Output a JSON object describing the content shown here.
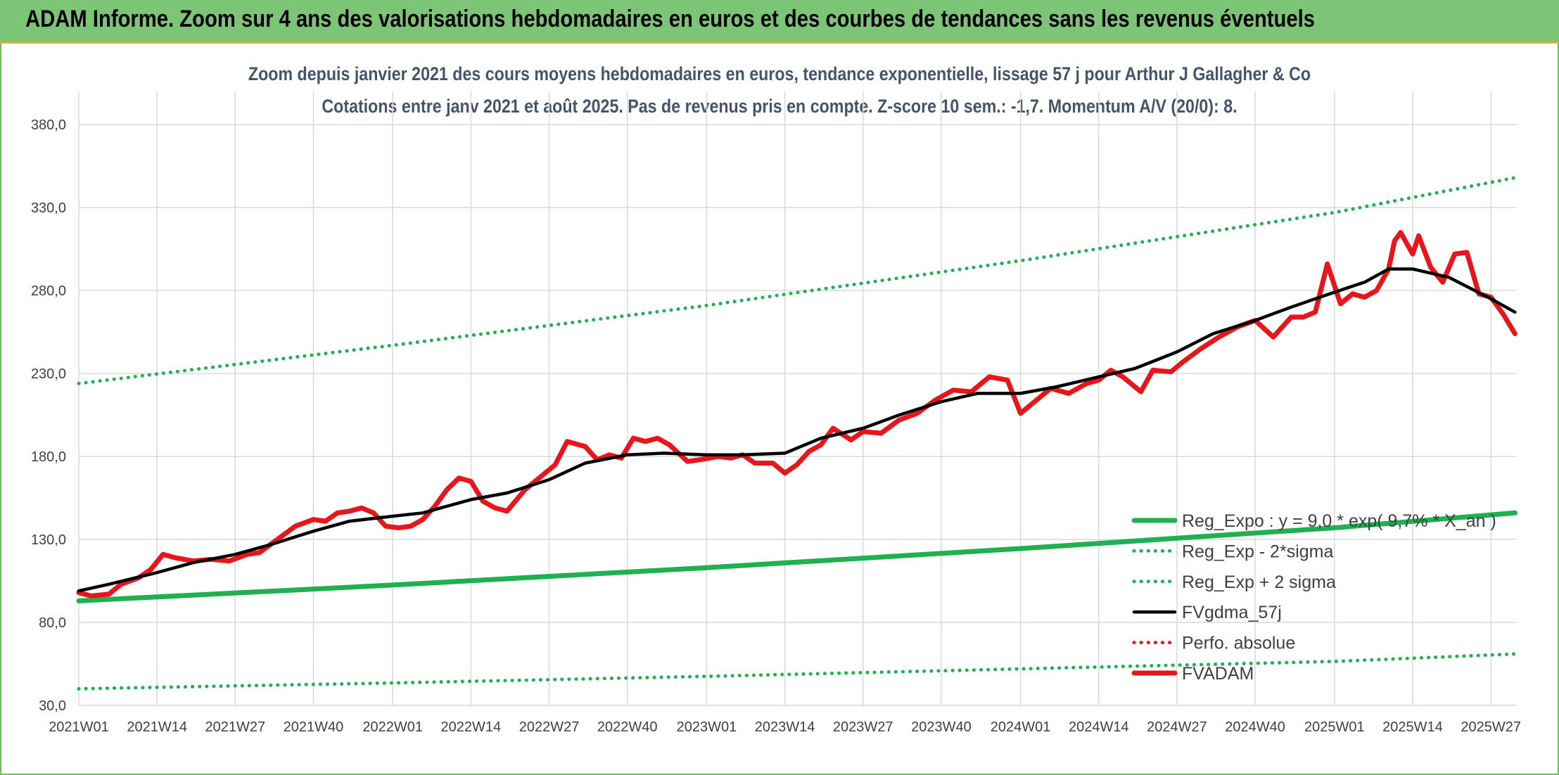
{
  "banner": {
    "title": "ADAM Informe. Zoom sur 4 ans des valorisations hebdomadaires en euros et des courbes de tendances sans les revenus éventuels"
  },
  "chart_data": {
    "type": "line",
    "title_line1": "Zoom depuis janvier 2021 des cours moyens hebdomadaires en euros, tendance exponentielle, lissage 57 j pour Arthur J Gallagher & Co",
    "title_line2": "Cotations entre janv 2021 et août 2025. Pas de revenus pris en compte. Z-score 10 sem.: -1,7. Momentum A/V (20/0): 8.",
    "ylim": [
      30,
      400
    ],
    "y_ticks": [
      "30,0",
      "80,0",
      "130,0",
      "180,0",
      "230,0",
      "280,0",
      "330,0",
      "380,0"
    ],
    "x_ticks": [
      "2021W01",
      "2021W14",
      "2021W27",
      "2021W40",
      "2022W01",
      "2022W14",
      "2022W27",
      "2022W40",
      "2023W01",
      "2023W14",
      "2023W27",
      "2023W40",
      "2024W01",
      "2024W14",
      "2024W27",
      "2024W40",
      "2025W01",
      "2025W14",
      "2025W27"
    ],
    "grid": true,
    "legend_position": "bottom-right",
    "legend": [
      "Reg_Expo : y = 9,0 * exp( 9,7% * X_an )",
      "Reg_Exp - 2*sigma",
      "Reg_Exp + 2 sigma",
      "FVgdma_57j",
      "Perfo. absolue",
      "FVADAM"
    ],
    "series": [
      {
        "name": "Reg_Expo : y = 9,0 * exp( 9,7% * X_an )",
        "style": "solid-thick",
        "color": "#1fb050",
        "x": [
          "2021W01",
          "2022W01",
          "2023W01",
          "2024W01",
          "2025W01",
          "2025W31"
        ],
        "y": [
          93,
          102.5,
          113,
          124.5,
          137,
          146
        ]
      },
      {
        "name": "Reg_Exp - 2*sigma",
        "style": "dotted",
        "color": "#1fb050",
        "x": [
          "2021W01",
          "2022W01",
          "2023W01",
          "2024W01",
          "2025W01",
          "2025W31"
        ],
        "y": [
          40,
          43.5,
          47.5,
          52,
          56.5,
          61
        ]
      },
      {
        "name": "Reg_Exp + 2 sigma",
        "style": "dotted",
        "color": "#1fb050",
        "x": [
          "2021W01",
          "2022W01",
          "2023W01",
          "2024W01",
          "2025W01",
          "2025W31"
        ],
        "y": [
          224,
          247,
          271,
          298,
          327,
          348
        ]
      },
      {
        "name": "FVgdma_57j",
        "style": "solid",
        "color": "#000000",
        "x": [
          "2021W01",
          "2021W06",
          "2021W14",
          "2021W20",
          "2021W27",
          "2021W33",
          "2021W40",
          "2021W46",
          "2022W01",
          "2022W06",
          "2022W14",
          "2022W20",
          "2022W27",
          "2022W33",
          "2022W40",
          "2022W46",
          "2023W01",
          "2023W07",
          "2023W14",
          "2023W20",
          "2023W27",
          "2023W33",
          "2023W40",
          "2023W46",
          "2024W01",
          "2024W07",
          "2024W14",
          "2024W20",
          "2024W27",
          "2024W33",
          "2024W40",
          "2024W46",
          "2025W01",
          "2025W06",
          "2025W10",
          "2025W14",
          "2025W20",
          "2025W27",
          "2025W31"
        ],
        "y": [
          99,
          103,
          110,
          116,
          121,
          127,
          135,
          141,
          144,
          146,
          154,
          158,
          166,
          176,
          181,
          182,
          181,
          181,
          182,
          191,
          197,
          205,
          213,
          218,
          218,
          222,
          228,
          233,
          243,
          254,
          262,
          270,
          279,
          285,
          293,
          293,
          288,
          275,
          267
        ]
      },
      {
        "name": "Perfo. absolue",
        "style": "dotted",
        "color": "#e8151b",
        "x": [],
        "y": []
      },
      {
        "name": "FVADAM",
        "style": "solid-thick",
        "color": "#e8151b",
        "x": [
          "2021W01",
          "2021W03",
          "2021W06",
          "2021W08",
          "2021W11",
          "2021W13",
          "2021W15",
          "2021W17",
          "2021W20",
          "2021W23",
          "2021W26",
          "2021W29",
          "2021W31",
          "2021W34",
          "2021W37",
          "2021W40",
          "2021W42",
          "2021W44",
          "2021W46",
          "2021W48",
          "2021W50",
          "2021W52",
          "2022W02",
          "2022W04",
          "2022W06",
          "2022W08",
          "2022W10",
          "2022W12",
          "2022W14",
          "2022W16",
          "2022W18",
          "2022W20",
          "2022W23",
          "2022W25",
          "2022W28",
          "2022W30",
          "2022W33",
          "2022W35",
          "2022W37",
          "2022W39",
          "2022W41",
          "2022W43",
          "2022W45",
          "2022W47",
          "2022W50",
          "2022W52",
          "2023W03",
          "2023W05",
          "2023W07",
          "2023W09",
          "2023W12",
          "2023W14",
          "2023W16",
          "2023W18",
          "2023W20",
          "2023W22",
          "2023W25",
          "2023W27",
          "2023W30",
          "2023W33",
          "2023W36",
          "2023W39",
          "2023W42",
          "2023W45",
          "2023W48",
          "2023W51",
          "2024W01",
          "2024W03",
          "2024W06",
          "2024W09",
          "2024W12",
          "2024W14",
          "2024W16",
          "2024W18",
          "2024W21",
          "2024W23",
          "2024W26",
          "2024W28",
          "2024W31",
          "2024W34",
          "2024W37",
          "2024W40",
          "2024W43",
          "2024W46",
          "2024W48",
          "2024W50",
          "2024W52",
          "2025W02",
          "2025W04",
          "2025W06",
          "2025W08",
          "2025W10",
          "2025W11",
          "2025W12",
          "2025W14",
          "2025W15",
          "2025W17",
          "2025W19",
          "2025W21",
          "2025W23",
          "2025W25",
          "2025W27",
          "2025W29",
          "2025W31"
        ],
        "y": [
          98,
          96,
          97,
          103,
          107,
          112,
          121,
          119,
          117,
          118,
          117,
          121,
          122,
          130,
          138,
          142,
          141,
          146,
          147,
          149,
          146,
          138,
          137,
          138,
          142,
          150,
          160,
          167,
          165,
          153,
          149,
          147,
          160,
          166,
          175,
          189,
          186,
          178,
          181,
          179,
          191,
          189,
          191,
          187,
          177,
          178,
          180,
          179,
          181,
          176,
          176,
          170,
          175,
          183,
          187,
          197,
          190,
          195,
          194,
          202,
          206,
          214,
          220,
          219,
          228,
          226,
          206,
          212,
          221,
          218,
          224,
          226,
          232,
          228,
          219,
          232,
          231,
          237,
          245,
          252,
          258,
          262,
          252,
          264,
          264,
          267,
          296,
          272,
          278,
          276,
          280,
          293,
          310,
          315,
          302,
          313,
          294,
          285,
          302,
          303,
          278,
          276,
          266,
          254
        ]
      }
    ]
  }
}
